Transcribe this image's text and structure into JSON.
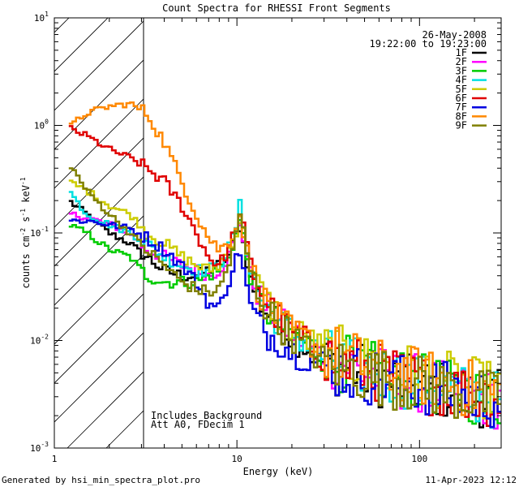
{
  "chart_data": {
    "type": "line",
    "title": "Count Spectra for RHESSI Front Segments",
    "xlabel": "Energy (keV)",
    "ylabel": "counts cm",
    "ylabel_sup1": "-2",
    "ylabel_mid": " s",
    "ylabel_sup2": "-1",
    "ylabel_end": " keV",
    "ylabel_sup3": "-1",
    "x_scale": "log",
    "y_scale": "log",
    "xlim": [
      1.0,
      280
    ],
    "ylim": [
      0.001,
      10
    ],
    "x_ticks": [
      {
        "value": 1,
        "label": "1"
      },
      {
        "value": 10,
        "label": "10"
      },
      {
        "value": 100,
        "label": "100"
      }
    ],
    "y_ticks": [
      {
        "value": 0.001,
        "base": "10",
        "exp": "-3"
      },
      {
        "value": 0.01,
        "base": "10",
        "exp": "-2"
      },
      {
        "value": 0.1,
        "base": "10",
        "exp": "-1"
      },
      {
        "value": 1,
        "base": "10",
        "exp": "0"
      },
      {
        "value": 10,
        "base": "10",
        "exp": "1"
      }
    ],
    "date": "26-May-2008",
    "time_range": "19:22:00 to 19:23:00",
    "note1": "Includes Background",
    "note2": "Att A0, FDecim 1",
    "excluded_region": [
      1.0,
      3.0
    ],
    "series": [
      {
        "name": "1F",
        "color": "#000000",
        "lo": [
          [
            1.2,
            0.2
          ],
          [
            1.5,
            0.15
          ],
          [
            2,
            0.1
          ],
          [
            2.6,
            0.08
          ],
          [
            3.2,
            0.06
          ],
          [
            4,
            0.045
          ],
          [
            5,
            0.04
          ],
          [
            6,
            0.04
          ],
          [
            7,
            0.045
          ],
          [
            8,
            0.05
          ],
          [
            9,
            0.06
          ],
          [
            10,
            0.1
          ],
          [
            10.5,
            0.12
          ],
          [
            11,
            0.07
          ],
          [
            12,
            0.035
          ],
          [
            14,
            0.02
          ],
          [
            17,
            0.014
          ],
          [
            20,
            0.011
          ],
          [
            25,
            0.008
          ],
          [
            30,
            0.006
          ],
          [
            40,
            0.0055
          ],
          [
            50,
            0.005
          ],
          [
            60,
            0.0045
          ],
          [
            80,
            0.004
          ],
          [
            100,
            0.0038
          ],
          [
            130,
            0.0035
          ],
          [
            160,
            0.0032
          ],
          [
            200,
            0.003
          ],
          [
            260,
            0.0028
          ]
        ]
      },
      {
        "name": "2F",
        "color": "#ff00ff",
        "lo": [
          [
            1.2,
            0.15
          ],
          [
            1.5,
            0.14
          ],
          [
            2,
            0.12
          ],
          [
            2.6,
            0.1
          ],
          [
            3.2,
            0.07
          ],
          [
            4,
            0.06
          ],
          [
            5,
            0.05
          ],
          [
            6,
            0.045
          ],
          [
            7,
            0.04
          ],
          [
            8,
            0.045
          ],
          [
            9,
            0.06
          ],
          [
            10,
            0.1
          ],
          [
            10.5,
            0.13
          ],
          [
            11,
            0.08
          ],
          [
            12,
            0.04
          ],
          [
            14,
            0.022
          ],
          [
            17,
            0.015
          ],
          [
            20,
            0.012
          ],
          [
            25,
            0.009
          ],
          [
            30,
            0.007
          ],
          [
            40,
            0.006
          ],
          [
            50,
            0.005
          ],
          [
            60,
            0.0048
          ],
          [
            80,
            0.0042
          ],
          [
            100,
            0.004
          ],
          [
            130,
            0.0036
          ],
          [
            160,
            0.0033
          ],
          [
            200,
            0.003
          ],
          [
            260,
            0.0028
          ]
        ]
      },
      {
        "name": "3F",
        "color": "#00cc00",
        "lo": [
          [
            1.2,
            0.12
          ],
          [
            1.5,
            0.1
          ],
          [
            2,
            0.07
          ],
          [
            2.6,
            0.06
          ],
          [
            3.2,
            0.04
          ],
          [
            4,
            0.035
          ],
          [
            5,
            0.035
          ],
          [
            6,
            0.035
          ],
          [
            7,
            0.04
          ],
          [
            8,
            0.045
          ],
          [
            9,
            0.06
          ],
          [
            10,
            0.1
          ],
          [
            10.5,
            0.14
          ],
          [
            11,
            0.08
          ],
          [
            12,
            0.035
          ],
          [
            14,
            0.02
          ],
          [
            17,
            0.014
          ],
          [
            20,
            0.011
          ],
          [
            25,
            0.009
          ],
          [
            30,
            0.007
          ],
          [
            40,
            0.006
          ],
          [
            50,
            0.0055
          ],
          [
            60,
            0.005
          ],
          [
            80,
            0.0045
          ],
          [
            100,
            0.004
          ],
          [
            130,
            0.0037
          ],
          [
            160,
            0.0033
          ],
          [
            200,
            0.0031
          ],
          [
            260,
            0.0029
          ]
        ]
      },
      {
        "name": "4F",
        "color": "#00e0e0",
        "lo": [
          [
            1.2,
            0.25
          ],
          [
            1.5,
            0.15
          ],
          [
            2,
            0.12
          ],
          [
            2.6,
            0.1
          ],
          [
            3.2,
            0.08
          ],
          [
            4,
            0.06
          ],
          [
            5,
            0.05
          ],
          [
            6,
            0.045
          ],
          [
            7,
            0.045
          ],
          [
            8,
            0.05
          ],
          [
            9,
            0.07
          ],
          [
            10,
            0.12
          ],
          [
            10.5,
            0.2
          ],
          [
            11,
            0.1
          ],
          [
            12,
            0.04
          ],
          [
            14,
            0.022
          ],
          [
            17,
            0.015
          ],
          [
            20,
            0.012
          ],
          [
            25,
            0.009
          ],
          [
            30,
            0.007
          ],
          [
            40,
            0.006
          ],
          [
            50,
            0.0055
          ],
          [
            60,
            0.005
          ],
          [
            80,
            0.0045
          ],
          [
            100,
            0.004
          ],
          [
            130,
            0.0036
          ],
          [
            160,
            0.0033
          ],
          [
            200,
            0.003
          ],
          [
            260,
            0.0028
          ]
        ]
      },
      {
        "name": "5F",
        "color": "#cccc00",
        "lo": [
          [
            1.2,
            0.3
          ],
          [
            1.5,
            0.25
          ],
          [
            2,
            0.18
          ],
          [
            2.6,
            0.15
          ],
          [
            3.2,
            0.1
          ],
          [
            4,
            0.08
          ],
          [
            5,
            0.06
          ],
          [
            6,
            0.05
          ],
          [
            7,
            0.045
          ],
          [
            8,
            0.05
          ],
          [
            9,
            0.07
          ],
          [
            10,
            0.1
          ],
          [
            10.5,
            0.14
          ],
          [
            11,
            0.09
          ],
          [
            12,
            0.045
          ],
          [
            14,
            0.025
          ],
          [
            17,
            0.017
          ],
          [
            20,
            0.013
          ],
          [
            25,
            0.01
          ],
          [
            30,
            0.008
          ],
          [
            40,
            0.007
          ],
          [
            50,
            0.0062
          ],
          [
            60,
            0.0058
          ],
          [
            80,
            0.0052
          ],
          [
            100,
            0.0048
          ],
          [
            130,
            0.0044
          ],
          [
            160,
            0.004
          ],
          [
            200,
            0.0037
          ],
          [
            260,
            0.0034
          ]
        ]
      },
      {
        "name": "6F",
        "color": "#e00000",
        "lo": [
          [
            1.2,
            0.95
          ],
          [
            1.5,
            0.8
          ],
          [
            2,
            0.6
          ],
          [
            2.6,
            0.5
          ],
          [
            3.2,
            0.4
          ],
          [
            4,
            0.3
          ],
          [
            5,
            0.18
          ],
          [
            6,
            0.1
          ],
          [
            7,
            0.06
          ],
          [
            8,
            0.05
          ],
          [
            9,
            0.07
          ],
          [
            10,
            0.12
          ],
          [
            10.5,
            0.15
          ],
          [
            11,
            0.1
          ],
          [
            12,
            0.05
          ],
          [
            14,
            0.025
          ],
          [
            17,
            0.016
          ],
          [
            20,
            0.012
          ],
          [
            25,
            0.009
          ],
          [
            30,
            0.007
          ],
          [
            40,
            0.006
          ],
          [
            50,
            0.0055
          ],
          [
            60,
            0.005
          ],
          [
            80,
            0.0045
          ],
          [
            100,
            0.004
          ],
          [
            130,
            0.0037
          ],
          [
            160,
            0.0034
          ],
          [
            200,
            0.0031
          ],
          [
            260,
            0.0029
          ]
        ]
      },
      {
        "name": "7F",
        "color": "#0000e0",
        "lo": [
          [
            1.2,
            0.13
          ],
          [
            1.5,
            0.13
          ],
          [
            2,
            0.12
          ],
          [
            2.6,
            0.11
          ],
          [
            3.2,
            0.09
          ],
          [
            4,
            0.07
          ],
          [
            5,
            0.05
          ],
          [
            6,
            0.035
          ],
          [
            7,
            0.022
          ],
          [
            8,
            0.02
          ],
          [
            9,
            0.035
          ],
          [
            10,
            0.06
          ],
          [
            10.5,
            0.07
          ],
          [
            11,
            0.04
          ],
          [
            12,
            0.02
          ],
          [
            14,
            0.012
          ],
          [
            17,
            0.01
          ],
          [
            20,
            0.008
          ],
          [
            25,
            0.007
          ],
          [
            30,
            0.006
          ],
          [
            40,
            0.005
          ],
          [
            50,
            0.0048
          ],
          [
            60,
            0.0045
          ],
          [
            80,
            0.004
          ],
          [
            100,
            0.0038
          ],
          [
            130,
            0.0035
          ],
          [
            160,
            0.0032
          ],
          [
            200,
            0.003
          ],
          [
            260,
            0.0028
          ]
        ]
      },
      {
        "name": "8F",
        "color": "#ff8800",
        "lo": [
          [
            1.2,
            0.95
          ],
          [
            1.5,
            1.3
          ],
          [
            2,
            1.5
          ],
          [
            2.6,
            1.6
          ],
          [
            3.2,
            1.3
          ],
          [
            4,
            0.7
          ],
          [
            5,
            0.3
          ],
          [
            6,
            0.15
          ],
          [
            7,
            0.09
          ],
          [
            8,
            0.07
          ],
          [
            9,
            0.08
          ],
          [
            10,
            0.12
          ],
          [
            10.5,
            0.15
          ],
          [
            11,
            0.09
          ],
          [
            12,
            0.045
          ],
          [
            14,
            0.024
          ],
          [
            17,
            0.016
          ],
          [
            20,
            0.012
          ],
          [
            25,
            0.01
          ],
          [
            30,
            0.008
          ],
          [
            40,
            0.007
          ],
          [
            50,
            0.006
          ],
          [
            60,
            0.0055
          ],
          [
            80,
            0.005
          ],
          [
            100,
            0.0046
          ],
          [
            130,
            0.0042
          ],
          [
            160,
            0.0038
          ],
          [
            200,
            0.0035
          ],
          [
            260,
            0.0032
          ]
        ]
      },
      {
        "name": "9F",
        "color": "#808000",
        "lo": [
          [
            1.2,
            0.45
          ],
          [
            1.5,
            0.25
          ],
          [
            2,
            0.15
          ],
          [
            2.6,
            0.1
          ],
          [
            3.2,
            0.07
          ],
          [
            4,
            0.05
          ],
          [
            5,
            0.035
          ],
          [
            6,
            0.03
          ],
          [
            7,
            0.028
          ],
          [
            8,
            0.03
          ],
          [
            9,
            0.05
          ],
          [
            10,
            0.1
          ],
          [
            10.5,
            0.16
          ],
          [
            11,
            0.09
          ],
          [
            12,
            0.04
          ],
          [
            14,
            0.022
          ],
          [
            17,
            0.014
          ],
          [
            20,
            0.011
          ],
          [
            25,
            0.008
          ],
          [
            30,
            0.0065
          ],
          [
            40,
            0.0055
          ],
          [
            50,
            0.005
          ],
          [
            60,
            0.0046
          ],
          [
            80,
            0.0042
          ],
          [
            100,
            0.0039
          ],
          [
            130,
            0.0036
          ],
          [
            160,
            0.0033
          ],
          [
            200,
            0.003
          ],
          [
            260,
            0.0028
          ]
        ]
      }
    ]
  },
  "footer": {
    "left": "Generated by hsi_min_spectra_plot.pro",
    "right": "11-Apr-2023 12:12"
  }
}
